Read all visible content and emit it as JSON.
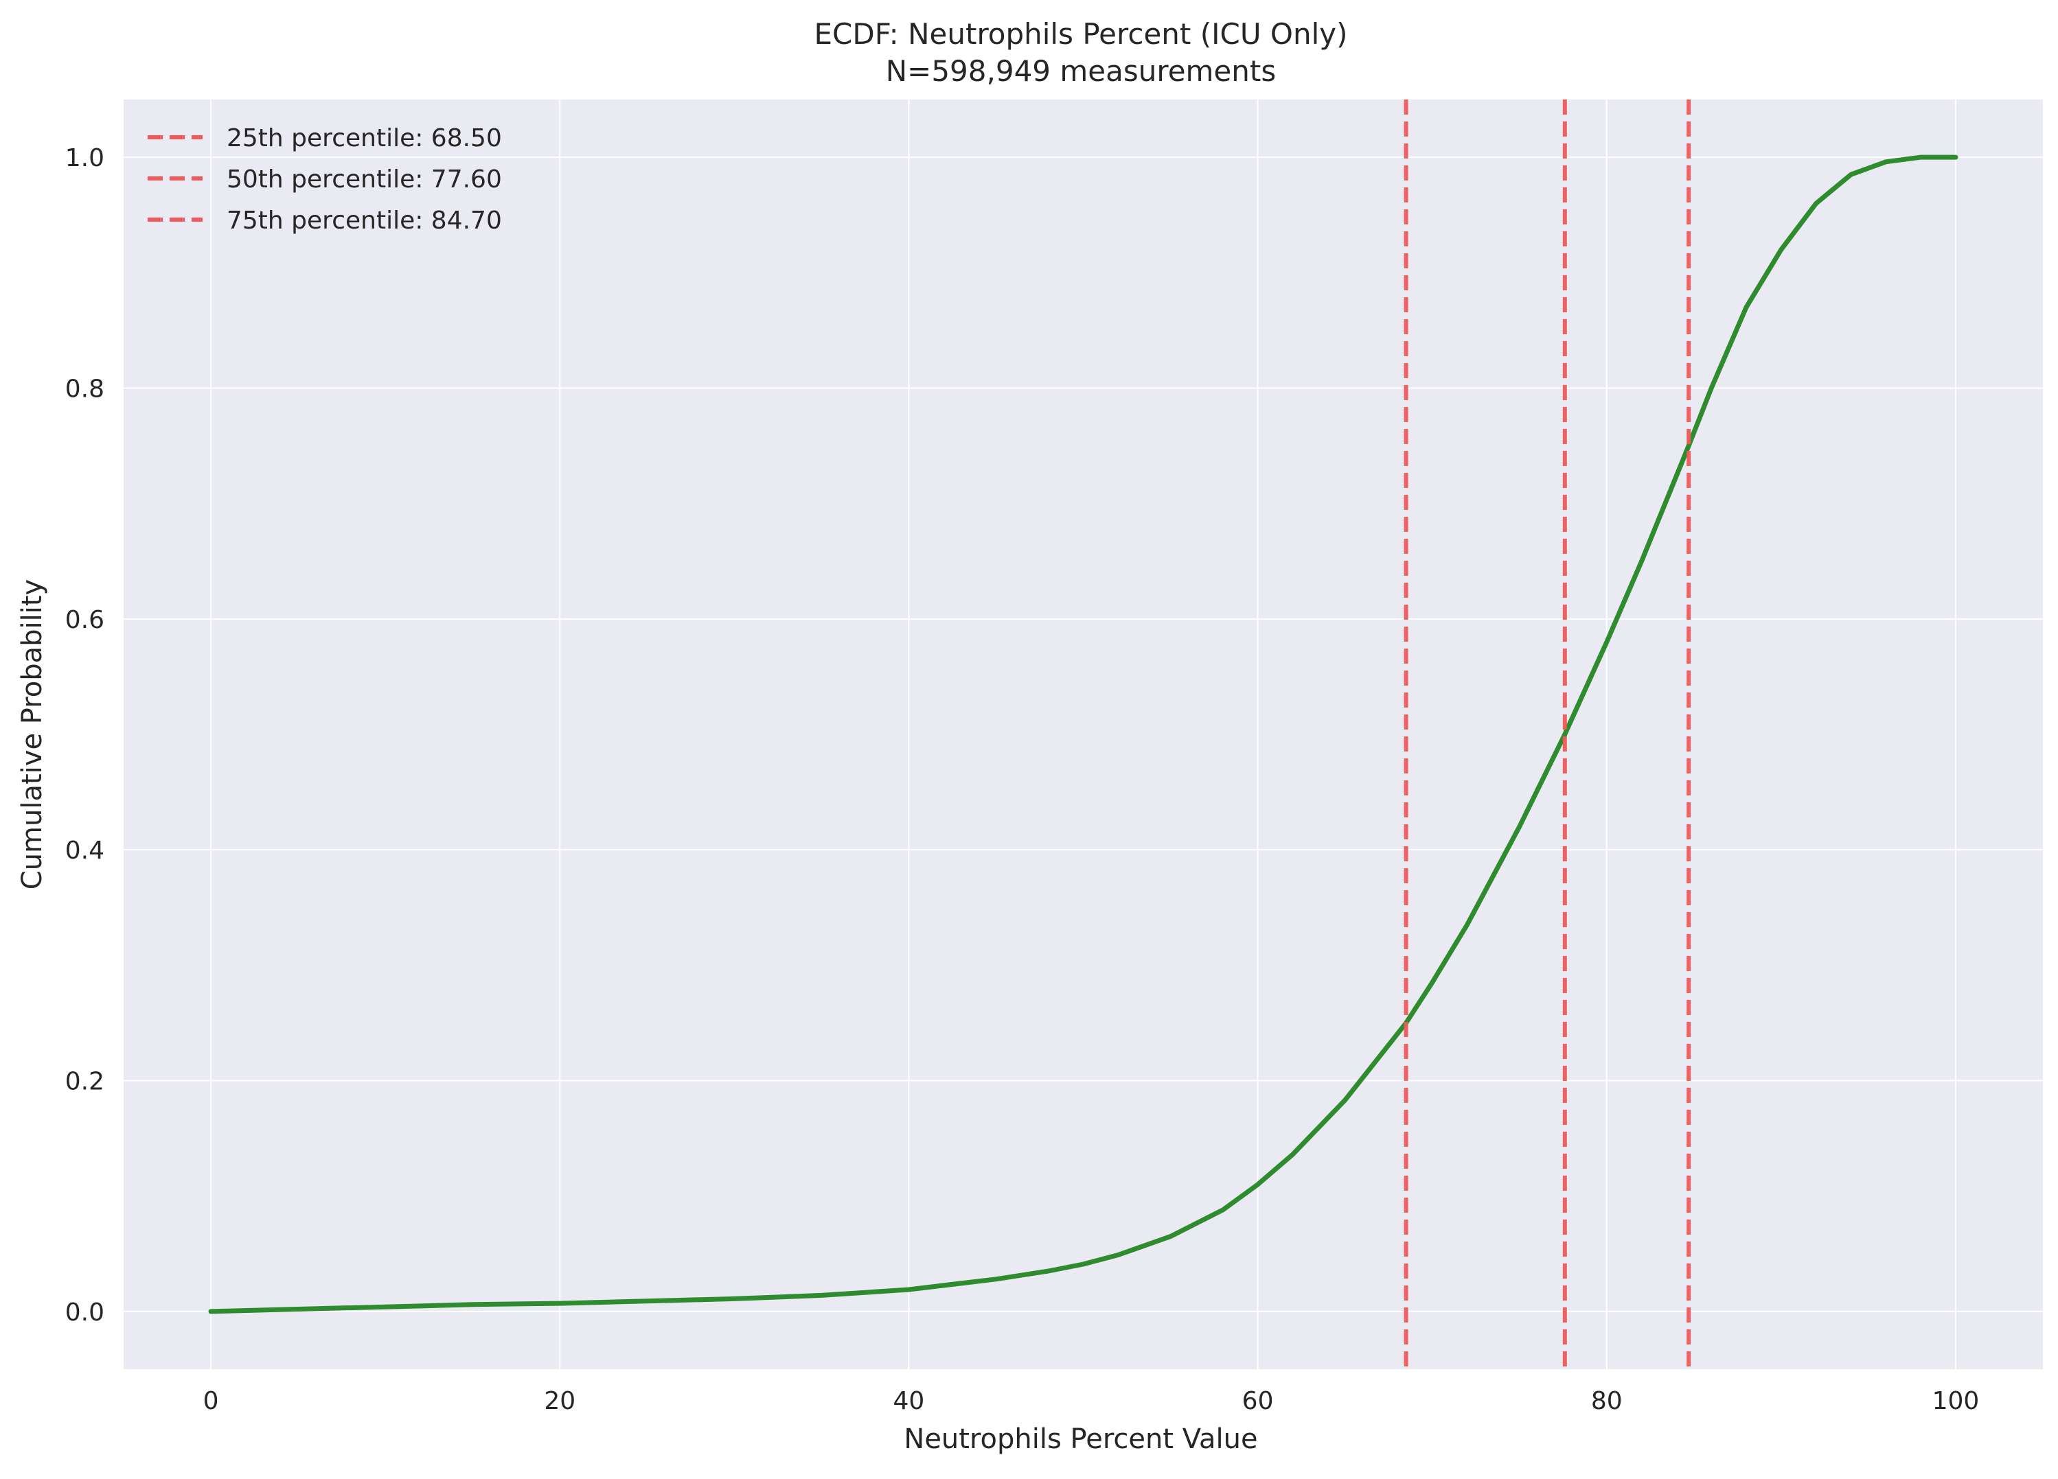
{
  "chart_data": {
    "type": "line",
    "title": "ECDF: Neutrophils Percent (ICU Only)",
    "subtitle": "N=598,949 measurements",
    "xlabel": "Neutrophils Percent Value",
    "ylabel": "Cumulative Probability",
    "xlim": [
      -5,
      105
    ],
    "ylim": [
      -0.05,
      1.05
    ],
    "xticks": [
      0,
      20,
      40,
      60,
      80,
      100
    ],
    "yticks": [
      0.0,
      0.2,
      0.4,
      0.6,
      0.8,
      1.0
    ],
    "grid": true,
    "legend_position": "top-left",
    "series": [
      {
        "color": "#2e8b2e",
        "x": [
          0,
          5,
          10,
          15,
          20,
          25,
          30,
          35,
          40,
          45,
          48,
          50,
          52,
          55,
          58,
          60,
          62,
          65,
          68.5,
          70,
          72,
          75,
          77.6,
          80,
          82,
          84.7,
          86,
          88,
          90,
          92,
          94,
          96,
          98,
          100
        ],
        "y": [
          0.0,
          0.002,
          0.004,
          0.006,
          0.007,
          0.009,
          0.011,
          0.014,
          0.019,
          0.028,
          0.035,
          0.041,
          0.049,
          0.065,
          0.088,
          0.11,
          0.136,
          0.183,
          0.25,
          0.285,
          0.335,
          0.42,
          0.5,
          0.58,
          0.65,
          0.75,
          0.8,
          0.87,
          0.92,
          0.96,
          0.985,
          0.996,
          1.0,
          1.0
        ]
      }
    ],
    "percentile_lines": [
      {
        "label": "25th percentile: 68.50",
        "x": 68.5,
        "color": "#f05a5a"
      },
      {
        "label": "50th percentile: 77.60",
        "x": 77.6,
        "color": "#f05a5a"
      },
      {
        "label": "75th percentile: 84.70",
        "x": 84.7,
        "color": "#f05a5a"
      }
    ]
  },
  "colors": {
    "figure_background": "#ffffff",
    "plot_background": "#eaeaf2",
    "grid": "#ffffff"
  }
}
